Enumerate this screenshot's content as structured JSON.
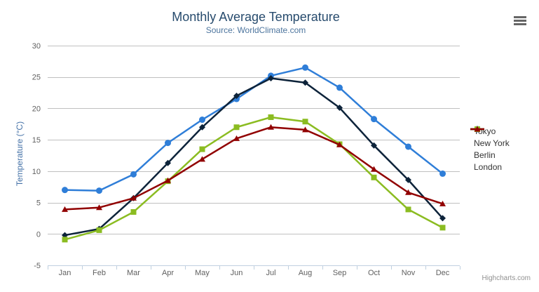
{
  "chart_data": {
    "type": "line",
    "title": "Monthly Average Temperature",
    "subtitle": "Source: WorldClimate.com",
    "xlabel": "",
    "ylabel": "Temperature (°C)",
    "categories": [
      "Jan",
      "Feb",
      "Mar",
      "Apr",
      "May",
      "Jun",
      "Jul",
      "Aug",
      "Sep",
      "Oct",
      "Nov",
      "Dec"
    ],
    "ylim": [
      -5,
      30
    ],
    "yticks": [
      -5,
      0,
      5,
      10,
      15,
      20,
      25,
      30
    ],
    "grid": true,
    "legend_position": "right",
    "series": [
      {
        "name": "Tokyo",
        "color": "#2f7ed8",
        "marker": "circle",
        "values": [
          7.0,
          6.9,
          9.5,
          14.5,
          18.2,
          21.5,
          25.2,
          26.5,
          23.3,
          18.3,
          13.9,
          9.6
        ]
      },
      {
        "name": "New York",
        "color": "#0d233a",
        "marker": "diamond",
        "values": [
          -0.2,
          0.8,
          5.7,
          11.3,
          17.0,
          22.0,
          24.8,
          24.1,
          20.1,
          14.1,
          8.6,
          2.5
        ]
      },
      {
        "name": "Berlin",
        "color": "#8bbc21",
        "marker": "square",
        "values": [
          -0.9,
          0.6,
          3.5,
          8.4,
          13.5,
          17.0,
          18.6,
          17.9,
          14.3,
          9.0,
          3.9,
          1.0
        ]
      },
      {
        "name": "London",
        "color": "#910000",
        "marker": "triangle",
        "values": [
          3.9,
          4.2,
          5.7,
          8.5,
          11.9,
          15.2,
          17.0,
          16.6,
          14.2,
          10.3,
          6.6,
          4.8
        ]
      }
    ]
  },
  "credits": "Highcharts.com",
  "export_button": {
    "icon": "hamburger-icon"
  },
  "styles": {
    "title_color": "#274b6d",
    "subtitle_color": "#4d759e",
    "y_title_color": "#4572a7",
    "axis_label_color": "#606060",
    "grid_color": "#c0c0c0",
    "axis_line_color": "#c0d0e0",
    "legend_text_color": "#333333",
    "credits_color": "#909090",
    "burger_color": "#666666"
  }
}
